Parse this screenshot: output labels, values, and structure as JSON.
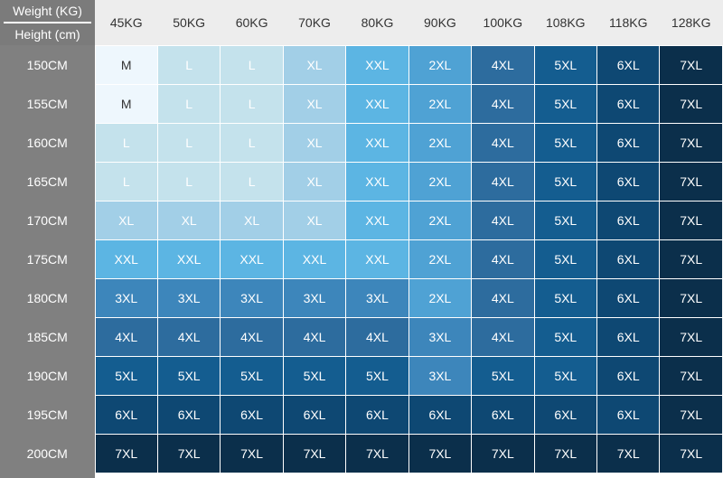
{
  "corner": {
    "weight_label": "Weight (KG)",
    "height_label": "Height (cm)"
  },
  "table": {
    "columns": [
      "45KG",
      "50KG",
      "60KG",
      "70KG",
      "80KG",
      "90KG",
      "100KG",
      "108KG",
      "118KG",
      "128KG"
    ],
    "row_headers": [
      "150CM",
      "155CM",
      "160CM",
      "165CM",
      "170CM",
      "175CM",
      "180CM",
      "185CM",
      "190CM",
      "195CM",
      "200CM"
    ],
    "rows": [
      [
        "M",
        "L",
        "L",
        "XL",
        "XXL",
        "2XL",
        "4XL",
        "5XL",
        "6XL",
        "7XL"
      ],
      [
        "M",
        "L",
        "L",
        "XL",
        "XXL",
        "2XL",
        "4XL",
        "5XL",
        "6XL",
        "7XL"
      ],
      [
        "L",
        "L",
        "L",
        "XL",
        "XXL",
        "2XL",
        "4XL",
        "5XL",
        "6XL",
        "7XL"
      ],
      [
        "L",
        "L",
        "L",
        "XL",
        "XXL",
        "2XL",
        "4XL",
        "5XL",
        "6XL",
        "7XL"
      ],
      [
        "XL",
        "XL",
        "XL",
        "XL",
        "XXL",
        "2XL",
        "4XL",
        "5XL",
        "6XL",
        "7XL"
      ],
      [
        "XXL",
        "XXL",
        "XXL",
        "XXL",
        "XXL",
        "2XL",
        "4XL",
        "5XL",
        "6XL",
        "7XL"
      ],
      [
        "3XL",
        "3XL",
        "3XL",
        "3XL",
        "3XL",
        "2XL",
        "4XL",
        "5XL",
        "6XL",
        "7XL"
      ],
      [
        "4XL",
        "4XL",
        "4XL",
        "4XL",
        "4XL",
        "3XL",
        "4XL",
        "5XL",
        "6XL",
        "7XL"
      ],
      [
        "5XL",
        "5XL",
        "5XL",
        "5XL",
        "5XL",
        "3XL",
        "5XL",
        "5XL",
        "6XL",
        "7XL"
      ],
      [
        "6XL",
        "6XL",
        "6XL",
        "6XL",
        "6XL",
        "6XL",
        "6XL",
        "6XL",
        "6XL",
        "7XL"
      ],
      [
        "7XL",
        "7XL",
        "7XL",
        "7XL",
        "7XL",
        "7XL",
        "7XL",
        "7XL",
        "7XL",
        "7XL"
      ]
    ],
    "size_colors": {
      "M": [
        "#eef7fd",
        "#333333"
      ],
      "L": [
        "#c4e2ec",
        "#ffffff"
      ],
      "XL": [
        "#a2cfe7",
        "#ffffff"
      ],
      "XXL": [
        "#5cb5e3",
        "#ffffff"
      ],
      "2XL": [
        "#4fa2d4",
        "#ffffff"
      ],
      "3XL": [
        "#3d86bb",
        "#ffffff"
      ],
      "4XL": [
        "#2d6c9e",
        "#ffffff"
      ],
      "5XL": [
        "#145d90",
        "#ffffff"
      ],
      "6XL": [
        "#0e4873",
        "#ffffff"
      ],
      "7XL": [
        "#0b2f4b",
        "#ffffff"
      ]
    }
  }
}
